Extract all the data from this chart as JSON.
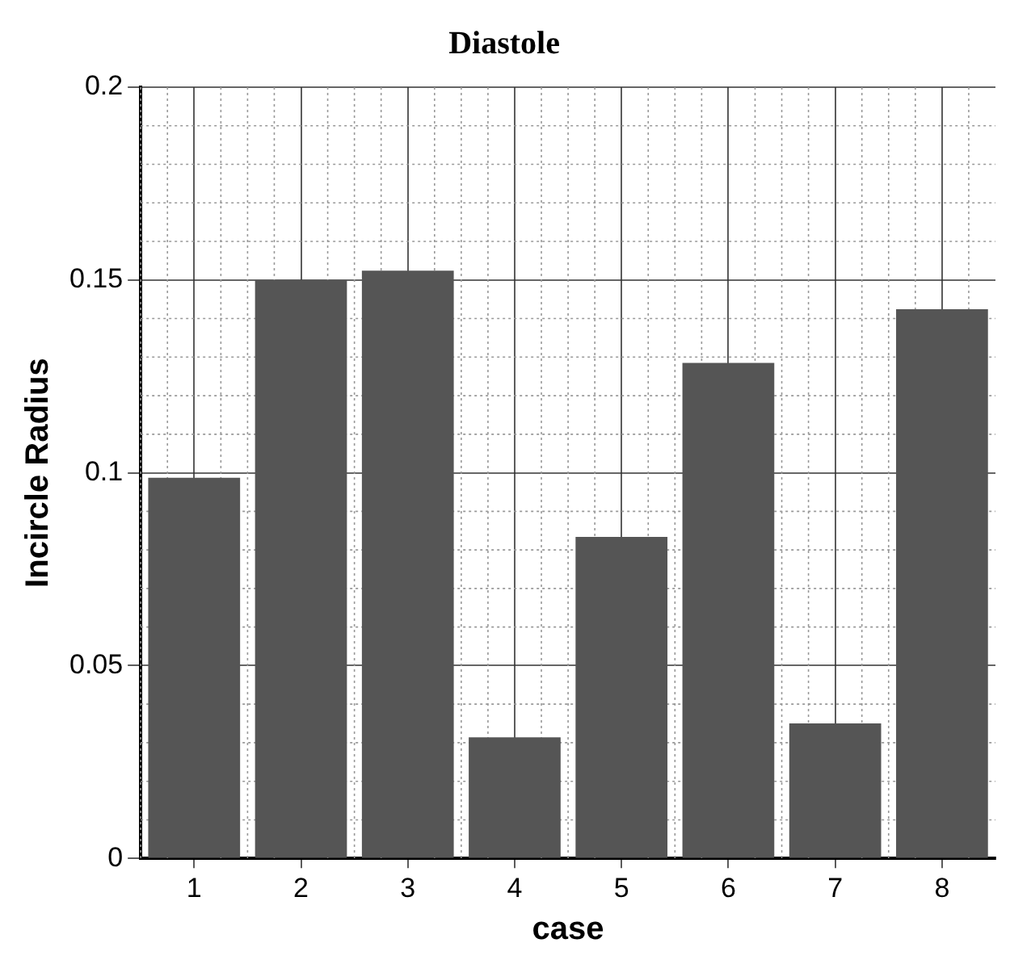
{
  "chart_data": {
    "type": "bar",
    "title": "Diastole",
    "xlabel": "case",
    "ylabel": "Incircle Radius",
    "categories": [
      "1",
      "2",
      "3",
      "4",
      "5",
      "6",
      "7",
      "8"
    ],
    "values": [
      0.0987,
      0.15,
      0.1524,
      0.0314,
      0.0834,
      0.1285,
      0.035,
      0.1424
    ],
    "color": "#555555",
    "ylim": [
      0,
      0.2
    ],
    "yticks": [
      0,
      0.05,
      0.1,
      0.15,
      0.2
    ],
    "grid": true,
    "legend": false
  }
}
